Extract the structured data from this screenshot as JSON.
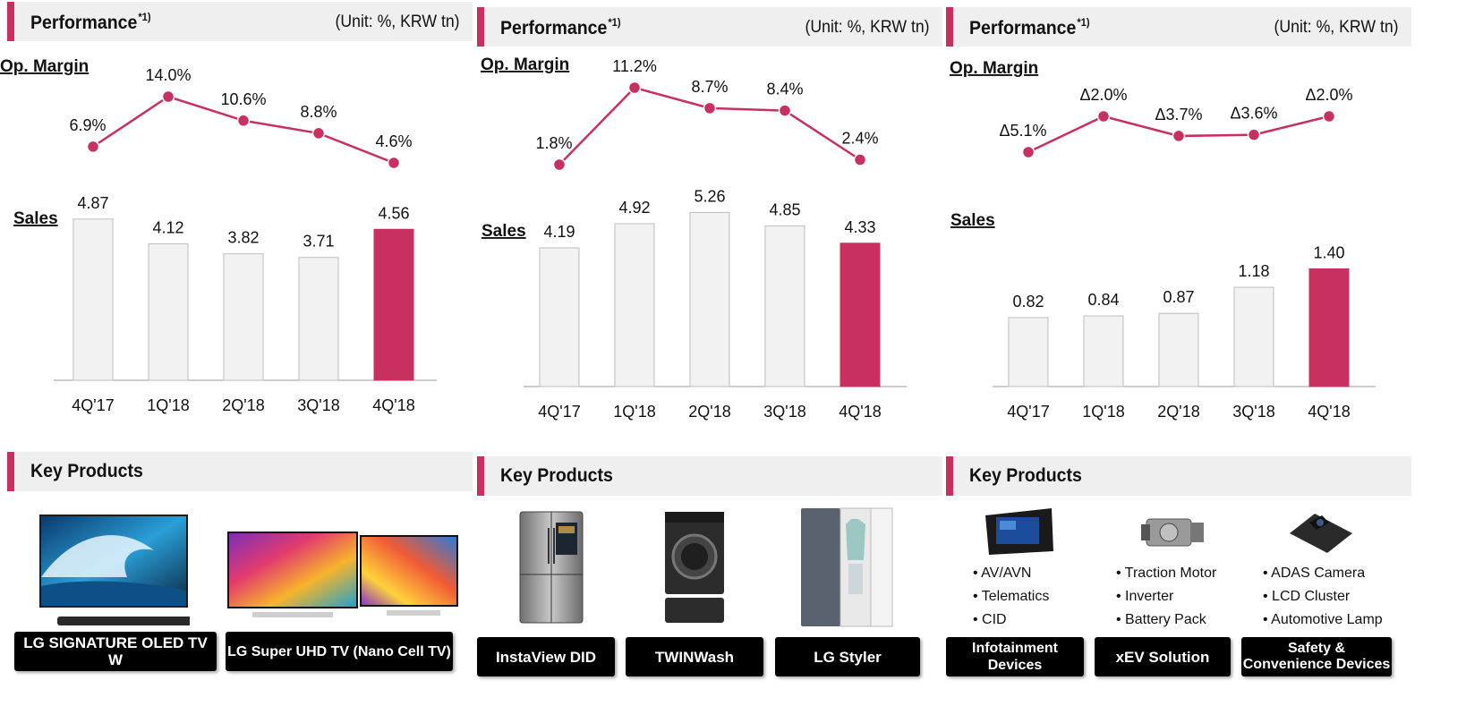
{
  "colors": {
    "accent": "#c8315f",
    "bar_gray": "#f2f2f2",
    "bar_border": "#bdbdbd"
  },
  "panels": [
    {
      "header": {
        "title": "Performance",
        "sup": "*1)",
        "unit": "(Unit: %, KRW tn)"
      },
      "key_products_title": "Key Products",
      "products": [
        "LG SIGNATURE OLED TV W",
        "LG Super UHD TV (Nano Cell TV)"
      ]
    },
    {
      "header": {
        "title": "Performance",
        "sup": "*1)",
        "unit": "(Unit: %, KRW tn)"
      },
      "key_products_title": "Key Products",
      "products": [
        "InstaView DID",
        "TWINWash",
        "LG Styler"
      ]
    },
    {
      "header": {
        "title": "Performance",
        "sup": "*1)",
        "unit": "(Unit: %, KRW tn)"
      },
      "key_products_title": "Key Products",
      "products": [
        "Infotainment Devices",
        "xEV Solution",
        "Safety & Convenience Devices"
      ],
      "bullets": [
        [
          "AV/AVN",
          "Telematics",
          "CID"
        ],
        [
          "Traction Motor",
          "Inverter",
          "Battery Pack"
        ],
        [
          "ADAS Camera",
          "LCD Cluster",
          "Automotive Lamp"
        ]
      ]
    }
  ],
  "chart_data": [
    {
      "type": "bar",
      "categories": [
        "4Q'17",
        "1Q'18",
        "2Q'18",
        "3Q'18",
        "4Q'18"
      ],
      "series": [
        {
          "name": "Op. Margin",
          "type": "line",
          "values": [
            6.9,
            14.0,
            10.6,
            8.8,
            4.6
          ],
          "labels": [
            "6.9%",
            "14.0%",
            "10.6%",
            "8.8%",
            "4.6%"
          ]
        },
        {
          "name": "Sales",
          "type": "bar",
          "values": [
            4.87,
            4.12,
            3.82,
            3.71,
            4.56
          ],
          "labels": [
            "4.87",
            "4.12",
            "3.82",
            "3.71",
            "4.56"
          ]
        }
      ]
    },
    {
      "type": "bar",
      "categories": [
        "4Q'17",
        "1Q'18",
        "2Q'18",
        "3Q'18",
        "4Q'18"
      ],
      "series": [
        {
          "name": "Op. Margin",
          "type": "line",
          "values": [
            1.8,
            11.2,
            8.7,
            8.4,
            2.4
          ],
          "labels": [
            "1.8%",
            "11.2%",
            "8.7%",
            "8.4%",
            "2.4%"
          ]
        },
        {
          "name": "Sales",
          "type": "bar",
          "values": [
            4.19,
            4.92,
            5.26,
            4.85,
            4.33
          ],
          "labels": [
            "4.19",
            "4.92",
            "5.26",
            "4.85",
            "4.33"
          ]
        }
      ]
    },
    {
      "type": "bar",
      "categories": [
        "4Q'17",
        "1Q'18",
        "2Q'18",
        "3Q'18",
        "4Q'18"
      ],
      "series": [
        {
          "name": "Op. Margin",
          "type": "line",
          "values": [
            -5.1,
            -2.0,
            -3.7,
            -3.6,
            -2.0
          ],
          "labels": [
            "Δ5.1%",
            "Δ2.0%",
            "Δ3.7%",
            "Δ3.6%",
            "Δ2.0%"
          ]
        },
        {
          "name": "Sales",
          "type": "bar",
          "values": [
            0.82,
            0.84,
            0.87,
            1.18,
            1.4
          ],
          "labels": [
            "0.82",
            "0.84",
            "0.87",
            "1.18",
            "1.40"
          ]
        }
      ]
    }
  ]
}
